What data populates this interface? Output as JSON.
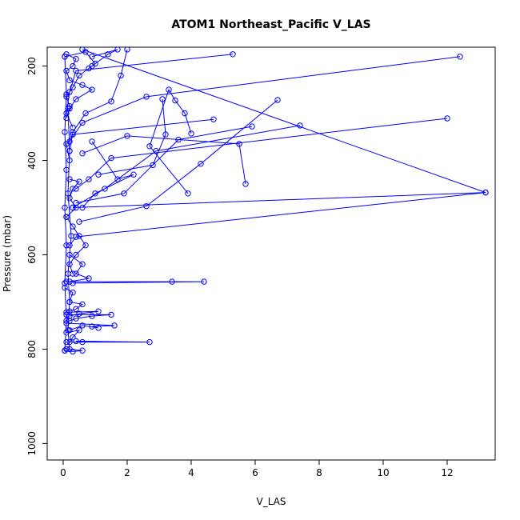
{
  "chart_data": {
    "type": "scatter",
    "title": "ATOM1 Northeast_Pacific V_LAS",
    "xlabel": "V_LAS",
    "ylabel": "Pressure (mbar)",
    "xlim": [
      -0.5,
      13.5
    ],
    "ylim": [
      1035,
      160
    ],
    "y_reversed": true,
    "x_ticks": [
      0,
      2,
      4,
      6,
      8,
      10,
      12
    ],
    "y_ticks": [
      200,
      400,
      600,
      800,
      1000
    ],
    "grid": false,
    "color": "#0000ff",
    "marker": "open-circle",
    "series": [
      {
        "values": [
          [
            0.1,
            175
          ],
          [
            0.4,
            185
          ],
          [
            0.3,
            200
          ],
          [
            0.1,
            210
          ],
          [
            0.2,
            230
          ],
          [
            0.6,
            240
          ],
          [
            0.9,
            250
          ],
          [
            0.4,
            270
          ],
          [
            0.2,
            290
          ],
          [
            0.1,
            310
          ]
        ]
      },
      {
        "values": [
          [
            0.05,
            180
          ],
          [
            0.7,
            170
          ],
          [
            1.0,
            195
          ],
          [
            0.8,
            205
          ],
          [
            0.5,
            220
          ],
          [
            0.3,
            245
          ],
          [
            0.1,
            265
          ],
          [
            0.2,
            285
          ]
        ]
      },
      {
        "values": [
          [
            5.3,
            175
          ],
          [
            0.4,
            210
          ],
          [
            0.2,
            255
          ],
          [
            0.1,
            300
          ],
          [
            0.3,
            330
          ]
        ]
      },
      {
        "values": [
          [
            12.4,
            180
          ],
          [
            2.6,
            265
          ],
          [
            0.6,
            320
          ],
          [
            0.2,
            360
          ]
        ]
      },
      {
        "values": [
          [
            2.0,
            165
          ],
          [
            1.8,
            220
          ],
          [
            1.5,
            275
          ],
          [
            0.7,
            300
          ],
          [
            0.3,
            340
          ],
          [
            0.2,
            380
          ]
        ]
      },
      {
        "values": [
          [
            0.6,
            165
          ],
          [
            13.2,
            468
          ],
          [
            0.3,
            500
          ]
        ]
      },
      {
        "values": [
          [
            4.7,
            313
          ],
          [
            0.3,
            345
          ],
          [
            0.1,
            365
          ],
          [
            0.2,
            400
          ]
        ]
      },
      {
        "values": [
          [
            6.7,
            272
          ],
          [
            4.3,
            407
          ],
          [
            2.6,
            497
          ],
          [
            0.5,
            530
          ]
        ]
      },
      {
        "values": [
          [
            12.0,
            311
          ],
          [
            1.5,
            395
          ],
          [
            0.8,
            440
          ],
          [
            0.4,
            460
          ]
        ]
      },
      {
        "values": [
          [
            7.4,
            326
          ],
          [
            2.9,
            380
          ],
          [
            1.3,
            460
          ],
          [
            0.3,
            500
          ]
        ]
      },
      {
        "values": [
          [
            5.9,
            328
          ],
          [
            3.6,
            356
          ],
          [
            1.9,
            470
          ],
          [
            0.4,
            490
          ]
        ]
      },
      {
        "values": [
          [
            5.7,
            450
          ],
          [
            5.5,
            365
          ],
          [
            2.0,
            348
          ],
          [
            0.6,
            385
          ]
        ]
      },
      {
        "values": [
          [
            3.9,
            470
          ],
          [
            2.7,
            370
          ],
          [
            3.3,
            250
          ],
          [
            3.5,
            273
          ],
          [
            3.8,
            300
          ],
          [
            4.0,
            343
          ]
        ]
      },
      {
        "values": [
          [
            13.2,
            468
          ],
          [
            0.4,
            562
          ],
          [
            0.2,
            580
          ]
        ]
      },
      {
        "values": [
          [
            0.2,
            440
          ],
          [
            0.5,
            445
          ],
          [
            0.3,
            460
          ],
          [
            0.2,
            480
          ],
          [
            0.4,
            500
          ],
          [
            0.1,
            520
          ]
        ]
      },
      {
        "values": [
          [
            0.1,
            520
          ],
          [
            0.3,
            540
          ],
          [
            0.5,
            560
          ],
          [
            0.7,
            580
          ],
          [
            0.4,
            600
          ],
          [
            0.2,
            620
          ],
          [
            0.3,
            640
          ]
        ]
      },
      {
        "values": [
          [
            0.2,
            600
          ],
          [
            0.6,
            620
          ],
          [
            0.4,
            640
          ],
          [
            0.8,
            650
          ],
          [
            0.2,
            657
          ]
        ]
      },
      {
        "values": [
          [
            0.1,
            657
          ],
          [
            3.4,
            657
          ],
          [
            4.4,
            657
          ],
          [
            0.3,
            660
          ]
        ]
      },
      {
        "values": [
          [
            0.05,
            670
          ],
          [
            0.3,
            680
          ],
          [
            0.2,
            700
          ],
          [
            0.6,
            705
          ],
          [
            0.4,
            715
          ],
          [
            0.2,
            720
          ]
        ]
      },
      {
        "values": [
          [
            0.1,
            722
          ],
          [
            1.1,
            720
          ],
          [
            0.5,
            725
          ],
          [
            0.2,
            730
          ]
        ]
      },
      {
        "values": [
          [
            0.1,
            727
          ],
          [
            1.5,
            727
          ],
          [
            0.9,
            730
          ],
          [
            0.4,
            735
          ],
          [
            0.2,
            740
          ]
        ]
      },
      {
        "values": [
          [
            0.1,
            745
          ],
          [
            1.6,
            750
          ],
          [
            0.9,
            752
          ],
          [
            1.1,
            755
          ],
          [
            0.6,
            750
          ],
          [
            0.2,
            760
          ]
        ]
      },
      {
        "values": [
          [
            0.1,
            765
          ],
          [
            0.5,
            760
          ],
          [
            0.3,
            775
          ],
          [
            0.2,
            785
          ]
        ]
      },
      {
        "values": [
          [
            0.1,
            785
          ],
          [
            2.7,
            785
          ],
          [
            0.4,
            783
          ],
          [
            0.6,
            785
          ]
        ]
      },
      {
        "values": [
          [
            0.05,
            803
          ],
          [
            0.3,
            805
          ],
          [
            0.6,
            803
          ],
          [
            0.1,
            800
          ]
        ]
      },
      {
        "values": [
          [
            0.05,
            180
          ],
          [
            0.1,
            260
          ],
          [
            0.05,
            340
          ],
          [
            0.1,
            420
          ],
          [
            0.05,
            500
          ],
          [
            0.1,
            580
          ],
          [
            0.05,
            660
          ],
          [
            0.1,
            740
          ],
          [
            0.05,
            803
          ]
        ]
      },
      {
        "values": [
          [
            0.15,
            290
          ],
          [
            0.2,
            380
          ],
          [
            0.15,
            470
          ],
          [
            0.25,
            560
          ],
          [
            0.15,
            640
          ],
          [
            0.2,
            700
          ],
          [
            0.15,
            760
          ],
          [
            0.2,
            800
          ]
        ]
      },
      {
        "values": [
          [
            0.9,
            200
          ],
          [
            1.4,
            175
          ],
          [
            1.7,
            165
          ],
          [
            0.9,
            180
          ]
        ]
      },
      {
        "values": [
          [
            0.9,
            360
          ],
          [
            1.7,
            440
          ],
          [
            2.2,
            430
          ],
          [
            1.0,
            470
          ],
          [
            0.6,
            500
          ]
        ]
      },
      {
        "values": [
          [
            3.1,
            270
          ],
          [
            3.2,
            345
          ],
          [
            2.8,
            410
          ],
          [
            1.1,
            430
          ]
        ]
      }
    ]
  }
}
